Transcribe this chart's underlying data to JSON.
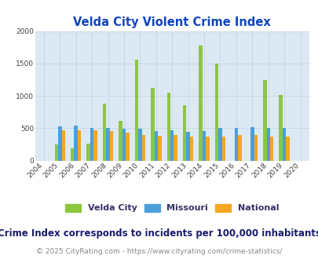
{
  "title": "Velda City Violent Crime Index",
  "subtitle": "Crime Index corresponds to incidents per 100,000 inhabitants",
  "footer": "© 2025 CityRating.com - https://www.cityrating.com/crime-statistics/",
  "years": [
    2004,
    2005,
    2006,
    2007,
    2008,
    2009,
    2010,
    2011,
    2012,
    2013,
    2014,
    2015,
    2016,
    2017,
    2018,
    2019,
    2020
  ],
  "velda_city": [
    null,
    250,
    190,
    265,
    880,
    610,
    1560,
    1120,
    1055,
    855,
    1775,
    1495,
    null,
    null,
    1240,
    1010,
    null
  ],
  "missouri": [
    null,
    530,
    540,
    505,
    505,
    495,
    495,
    460,
    465,
    440,
    460,
    505,
    510,
    520,
    505,
    500,
    null
  ],
  "national": [
    null,
    470,
    470,
    470,
    460,
    430,
    400,
    385,
    390,
    375,
    365,
    375,
    390,
    390,
    375,
    370,
    null
  ],
  "colors": {
    "velda_city": "#8dc63f",
    "missouri": "#4d9fdb",
    "national": "#f5a623"
  },
  "ylim": [
    0,
    2000
  ],
  "yticks": [
    0,
    500,
    1000,
    1500,
    2000
  ],
  "title_color": "#1144bb",
  "subtitle_color": "#1a1a6e",
  "footer_color": "#888888",
  "footer_link_color": "#3366cc",
  "legend_label_color": "#5b2c6f",
  "bar_width": 0.22,
  "title_fontsize": 10.5,
  "subtitle_fontsize": 8.5,
  "footer_fontsize": 6.5,
  "legend_fontsize": 8,
  "tick_fontsize": 6.5,
  "grid_color": "#c8d8e8",
  "plot_bg": "#dce9f5"
}
